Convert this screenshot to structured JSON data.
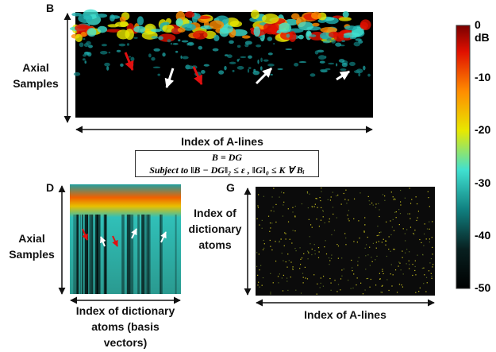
{
  "panels": {
    "b": {
      "label": "B",
      "y_label": "Axial\nSamples",
      "x_label": "Index of A-lines"
    },
    "equation": {
      "line1": "B = DG",
      "line2": "Subject to ‖B − DG‖₂ ≤ ε , ‖G‖₀ ≤ K ∀ Bᵢ"
    },
    "d": {
      "label": "D",
      "y_label": "Axial\nSamples",
      "x_label": "Index of dictionary\natoms (basis\nvectors)"
    },
    "g": {
      "label": "G",
      "y_label": "Index of\ndictionary\natoms",
      "x_label": "Index of A-lines"
    }
  },
  "colorbar": {
    "ticks": [
      "0 dB",
      "-10",
      "-20",
      "-30",
      "-40",
      "-50"
    ]
  }
}
